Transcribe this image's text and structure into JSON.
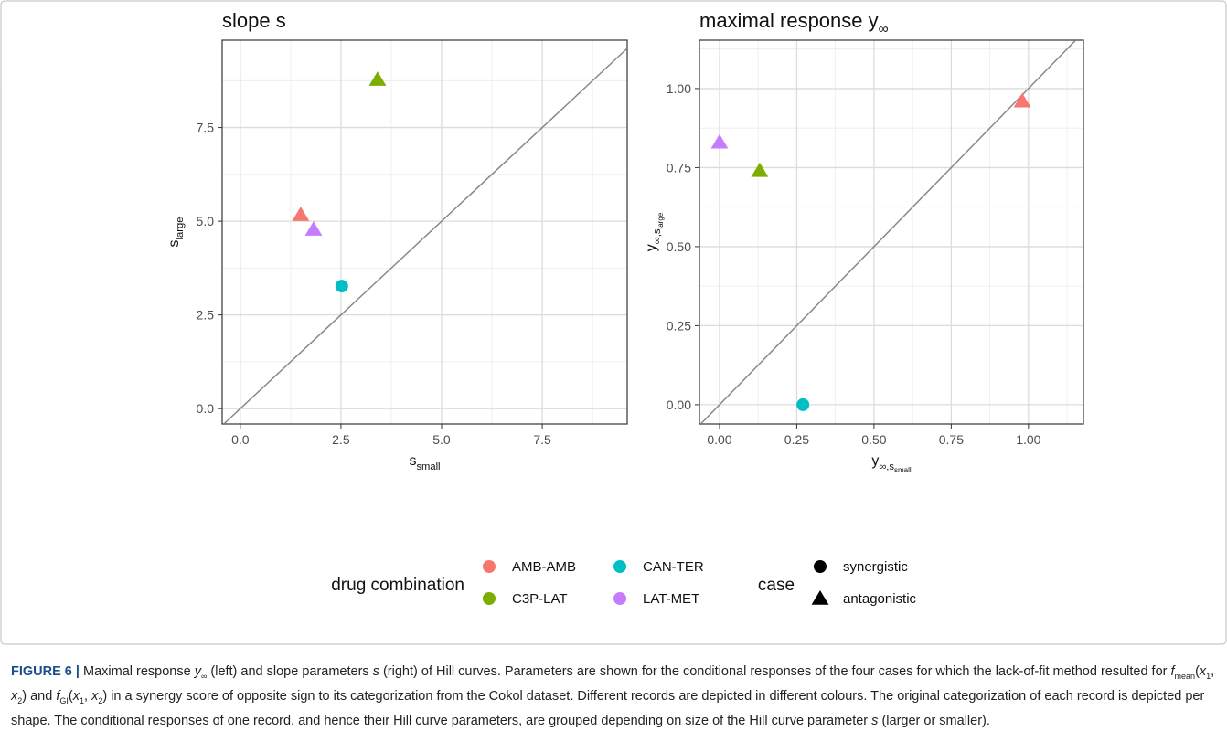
{
  "chart_data": [
    {
      "type": "scatter",
      "title": {
        "text": "slope s"
      },
      "x_label": {
        "text": "s",
        "sub": "small"
      },
      "y_label": {
        "text": "s",
        "sub": "large"
      },
      "xlim": [
        -0.45,
        9.61
      ],
      "ylim": [
        -0.41,
        9.83
      ],
      "xticks": [
        {
          "value": 0,
          "label": "0.0"
        },
        2.5,
        {
          "value": 5,
          "label": "5.0"
        },
        7.5
      ],
      "yticks": [
        {
          "value": 0,
          "label": "0.0"
        },
        2.5,
        {
          "value": 5,
          "label": "5.0"
        },
        7.5
      ],
      "grid": true,
      "minor_grid": true,
      "diagonal": true,
      "series": [
        {
          "name": "AMB-AMB",
          "color": "#F8766D",
          "shape": "triangle",
          "x": [
            1.5
          ],
          "values": [
            5.17
          ]
        },
        {
          "name": "C3P-LAT",
          "color": "#7CAE00",
          "shape": "triangle",
          "x": [
            3.41
          ],
          "values": [
            8.78
          ]
        },
        {
          "name": "CAN-TER",
          "color": "#00BFC4",
          "shape": "circle",
          "x": [
            2.52
          ],
          "values": [
            3.27
          ]
        },
        {
          "name": "LAT-MET",
          "color": "#C77CFF",
          "shape": "triangle",
          "x": [
            1.82
          ],
          "values": [
            4.78
          ]
        }
      ]
    },
    {
      "type": "scatter",
      "title": {
        "text": "maximal response y",
        "sub": "∞"
      },
      "x_label": {
        "text": "y",
        "sub": "∞,s",
        "subsub": "small"
      },
      "y_label": {
        "text": "y",
        "sub": "∞,s",
        "subsub": "large"
      },
      "xlim": [
        -0.065,
        1.178
      ],
      "ylim": [
        -0.061,
        1.153
      ],
      "xticks": [
        {
          "value": 0,
          "label": "0.00"
        },
        {
          "value": 0.25,
          "label": "0.25"
        },
        {
          "value": 0.5,
          "label": "0.50"
        },
        {
          "value": 0.75,
          "label": "0.75"
        },
        {
          "value": 1,
          "label": "1.00"
        }
      ],
      "yticks": [
        {
          "value": 0,
          "label": "0.00"
        },
        {
          "value": 0.25,
          "label": "0.25"
        },
        {
          "value": 0.5,
          "label": "0.50"
        },
        {
          "value": 0.75,
          "label": "0.75"
        },
        {
          "value": 1,
          "label": "1.00"
        }
      ],
      "grid": true,
      "minor_grid": true,
      "diagonal": true,
      "series": [
        {
          "name": "AMB-AMB",
          "color": "#F8766D",
          "shape": "triangle",
          "x": [
            0.98
          ],
          "values": [
            0.96
          ]
        },
        {
          "name": "C3P-LAT",
          "color": "#7CAE00",
          "shape": "triangle",
          "x": [
            0.13
          ],
          "values": [
            0.74
          ]
        },
        {
          "name": "CAN-TER",
          "color": "#00BFC4",
          "shape": "circle",
          "x": [
            0.27
          ],
          "values": [
            0.0
          ]
        },
        {
          "name": "LAT-MET",
          "color": "#C77CFF",
          "shape": "triangle",
          "x": [
            0.0
          ],
          "values": [
            0.83
          ]
        }
      ]
    }
  ],
  "legend": {
    "color_title": "drug combination",
    "shape_title": "case",
    "shapes": [
      {
        "name": "synergistic",
        "shape": "circle"
      },
      {
        "name": "antagonistic",
        "shape": "triangle"
      }
    ]
  },
  "caption": [
    "FIGURE 6 |",
    " Maximal response ",
    "y",
    "∞",
    " (left) and slope parameters ",
    "s",
    " (right) of Hill curves. Parameters are shown for the conditional responses of the four cases for which the lack-of-fit method resulted for ",
    "f",
    "mean",
    "(",
    "x",
    "1",
    ", ",
    "x",
    "2",
    ") and ",
    "f",
    "GI",
    "(",
    "x",
    "1",
    ", ",
    "x",
    "2",
    ") in a synergy score of opposite sign to its categorization from the Cokol dataset. Different records are depicted in different colours. The original categorization of each record is depicted per shape. The conditional responses of one record, and hence their Hill curve parameters, are grouped depending on size of the Hill curve parameter ",
    "s",
    " (larger or smaller)."
  ]
}
